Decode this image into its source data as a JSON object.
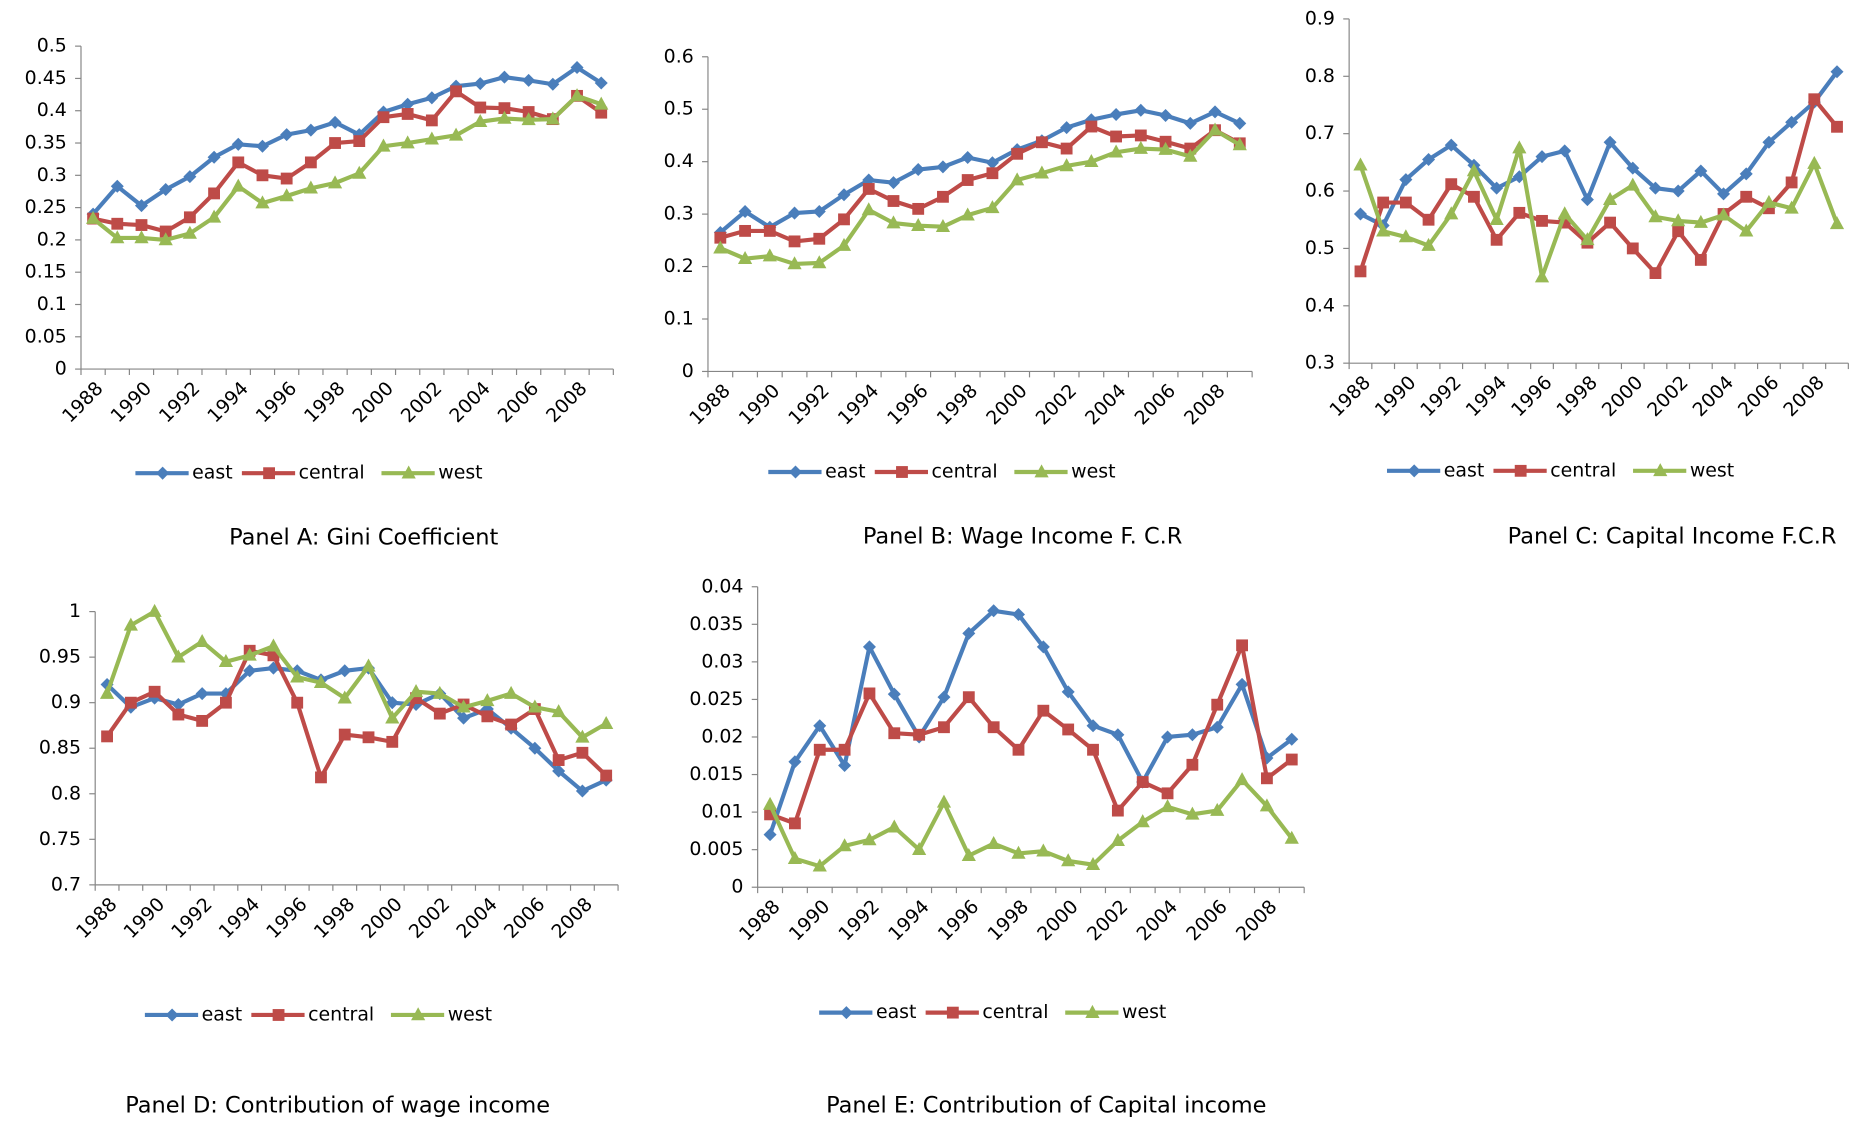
{
  "chart_data": [
    {
      "type": "line",
      "title": "Panel A: Gini Coefficient",
      "categories": [
        "1988",
        null,
        "1990",
        null,
        "1992",
        null,
        "1994",
        null,
        "1996",
        null,
        "1998",
        null,
        "2000",
        null,
        "2002",
        null,
        "2004",
        null,
        "2006",
        null,
        "2008",
        null
      ],
      "ylim": [
        0,
        0.5
      ],
      "yticks": [
        0,
        0.05,
        0.1,
        0.15,
        0.2,
        0.25,
        0.3,
        0.35,
        0.4,
        0.45,
        0.5
      ],
      "legend": "bottom",
      "series": [
        {
          "name": "east",
          "color": "#4a7ebb",
          "marker": "diamond",
          "values": [
            0.24,
            0.283,
            0.253,
            0.278,
            0.298,
            0.328,
            0.348,
            0.345,
            0.363,
            0.37,
            0.382,
            0.363,
            0.398,
            0.41,
            0.42,
            0.438,
            0.442,
            0.452,
            0.447,
            0.441,
            0.467,
            0.443
          ]
        },
        {
          "name": "central",
          "color": "#be4b48",
          "marker": "square",
          "values": [
            0.233,
            0.225,
            0.223,
            0.213,
            0.235,
            0.272,
            0.32,
            0.3,
            0.295,
            0.32,
            0.35,
            0.353,
            0.39,
            0.395,
            0.385,
            0.43,
            0.405,
            0.404,
            0.398,
            0.387,
            0.423,
            0.397
          ]
        },
        {
          "name": "west",
          "color": "#98b954",
          "marker": "triangle",
          "values": [
            0.233,
            0.203,
            0.203,
            0.2,
            0.21,
            0.235,
            0.283,
            0.257,
            0.268,
            0.28,
            0.288,
            0.303,
            0.345,
            0.35,
            0.356,
            0.362,
            0.383,
            0.388,
            0.386,
            0.387,
            0.423,
            0.41
          ]
        }
      ]
    },
    {
      "type": "line",
      "title": "Panel B: Wage Income F. C.R",
      "categories": [
        "1988",
        null,
        "1990",
        null,
        "1992",
        null,
        "1994",
        null,
        "1996",
        null,
        "1998",
        null,
        "2000",
        null,
        "2002",
        null,
        "2004",
        null,
        "2006",
        null,
        "2008",
        null
      ],
      "ylim": [
        0,
        0.6
      ],
      "yticks": [
        0,
        0.1,
        0.2,
        0.3,
        0.4,
        0.5,
        0.6
      ],
      "legend": "bottom",
      "series": [
        {
          "name": "east",
          "color": "#4a7ebb",
          "marker": "diamond",
          "values": [
            0.265,
            0.305,
            0.275,
            0.302,
            0.305,
            0.337,
            0.365,
            0.36,
            0.385,
            0.39,
            0.408,
            0.398,
            0.423,
            0.44,
            0.465,
            0.48,
            0.49,
            0.498,
            0.488,
            0.473,
            0.495,
            0.473
          ]
        },
        {
          "name": "central",
          "color": "#be4b48",
          "marker": "square",
          "values": [
            0.255,
            0.268,
            0.268,
            0.248,
            0.253,
            0.29,
            0.348,
            0.325,
            0.31,
            0.333,
            0.365,
            0.378,
            0.415,
            0.437,
            0.425,
            0.467,
            0.448,
            0.45,
            0.438,
            0.425,
            0.46,
            0.435
          ]
        },
        {
          "name": "west",
          "color": "#98b954",
          "marker": "triangle",
          "values": [
            0.235,
            0.215,
            0.22,
            0.205,
            0.207,
            0.24,
            0.308,
            0.283,
            0.278,
            0.276,
            0.298,
            0.312,
            0.365,
            0.378,
            0.392,
            0.4,
            0.418,
            0.425,
            0.423,
            0.41,
            0.46,
            0.432
          ]
        }
      ]
    },
    {
      "type": "line",
      "title": "Panel C: Capital Income F.C.R",
      "categories": [
        "1988",
        null,
        "1990",
        null,
        "1992",
        null,
        "1994",
        null,
        "1996",
        null,
        "1998",
        null,
        "2000",
        null,
        "2002",
        null,
        "2004",
        null,
        "2006",
        null,
        "2008",
        null
      ],
      "ylim": [
        0.3,
        0.9
      ],
      "yticks": [
        0.3,
        0.4,
        0.5,
        0.6,
        0.7,
        0.8,
        0.9
      ],
      "legend": "bottom",
      "series": [
        {
          "name": "east",
          "color": "#4a7ebb",
          "marker": "diamond",
          "values": [
            0.56,
            0.54,
            0.62,
            0.655,
            0.68,
            0.645,
            0.605,
            0.625,
            0.66,
            0.67,
            0.585,
            0.685,
            0.64,
            0.605,
            0.6,
            0.635,
            0.595,
            0.63,
            0.685,
            0.72,
            0.755,
            0.808
          ]
        },
        {
          "name": "central",
          "color": "#be4b48",
          "marker": "square",
          "values": [
            0.46,
            0.58,
            0.58,
            0.55,
            0.612,
            0.59,
            0.515,
            0.562,
            0.548,
            0.545,
            0.51,
            0.545,
            0.5,
            0.457,
            0.53,
            0.48,
            0.56,
            0.59,
            0.57,
            0.615,
            0.76,
            0.712
          ]
        },
        {
          "name": "west",
          "color": "#98b954",
          "marker": "triangle",
          "values": [
            0.645,
            0.53,
            0.52,
            0.505,
            0.56,
            0.635,
            0.55,
            0.675,
            0.45,
            0.56,
            0.515,
            0.585,
            0.61,
            0.555,
            0.548,
            0.545,
            0.558,
            0.53,
            0.58,
            0.57,
            0.648,
            0.543
          ]
        }
      ]
    },
    {
      "type": "line",
      "title": "Panel D: Contribution of wage income",
      "categories": [
        "1988",
        null,
        "1990",
        null,
        "1992",
        null,
        "1994",
        null,
        "1996",
        null,
        "1998",
        null,
        "2000",
        null,
        "2002",
        null,
        "2004",
        null,
        "2006",
        null,
        "2008",
        null
      ],
      "ylim": [
        0.7,
        1
      ],
      "yticks": [
        0.7,
        0.75,
        0.8,
        0.85,
        0.9,
        0.95,
        1
      ],
      "legend": "bottom",
      "series": [
        {
          "name": "east",
          "color": "#4a7ebb",
          "marker": "diamond",
          "values": [
            0.92,
            0.895,
            0.905,
            0.898,
            0.91,
            0.91,
            0.935,
            0.938,
            0.935,
            0.925,
            0.935,
            0.938,
            0.9,
            0.898,
            0.91,
            0.883,
            0.893,
            0.872,
            0.85,
            0.825,
            0.803,
            0.815
          ]
        },
        {
          "name": "central",
          "color": "#be4b48",
          "marker": "square",
          "values": [
            0.863,
            0.9,
            0.912,
            0.887,
            0.88,
            0.9,
            0.957,
            0.952,
            0.9,
            0.818,
            0.865,
            0.862,
            0.857,
            0.905,
            0.888,
            0.898,
            0.885,
            0.876,
            0.893,
            0.837,
            0.845,
            0.82
          ]
        },
        {
          "name": "west",
          "color": "#98b954",
          "marker": "triangle",
          "values": [
            0.91,
            0.985,
            1,
            0.95,
            0.967,
            0.945,
            0.952,
            0.962,
            0.928,
            0.922,
            0.905,
            0.94,
            0.883,
            0.912,
            0.91,
            0.895,
            0.902,
            0.91,
            0.895,
            0.89,
            0.862,
            0.877
          ]
        }
      ]
    },
    {
      "type": "line",
      "title": "Panel E: Contribution of Capital income",
      "categories": [
        "1988",
        null,
        "1990",
        null,
        "1992",
        null,
        "1994",
        null,
        "1996",
        null,
        "1998",
        null,
        "2000",
        null,
        "2002",
        null,
        "2004",
        null,
        "2006",
        null,
        "2008",
        null
      ],
      "ylim": [
        0,
        0.04
      ],
      "yticks": [
        0,
        0.005,
        0.01,
        0.015,
        0.02,
        0.025,
        0.03,
        0.035,
        0.04
      ],
      "legend": "bottom",
      "series": [
        {
          "name": "east",
          "color": "#4a7ebb",
          "marker": "diamond",
          "values": [
            0.007,
            0.0167,
            0.0215,
            0.0162,
            0.032,
            0.0257,
            0.02,
            0.0253,
            0.0338,
            0.0368,
            0.0363,
            0.032,
            0.026,
            0.0215,
            0.0203,
            0.014,
            0.02,
            0.0203,
            0.0213,
            0.027,
            0.0172,
            0.0197
          ]
        },
        {
          "name": "central",
          "color": "#be4b48",
          "marker": "square",
          "values": [
            0.0097,
            0.0085,
            0.0183,
            0.0183,
            0.0258,
            0.0205,
            0.0203,
            0.0213,
            0.0253,
            0.0213,
            0.0183,
            0.0235,
            0.021,
            0.0183,
            0.0102,
            0.014,
            0.0125,
            0.0163,
            0.0243,
            0.0322,
            0.0145,
            0.017
          ]
        },
        {
          "name": "west",
          "color": "#98b954",
          "marker": "triangle",
          "values": [
            0.011,
            0.0038,
            0.0028,
            0.0055,
            0.0063,
            0.008,
            0.005,
            0.0113,
            0.0042,
            0.0058,
            0.0045,
            0.0048,
            0.0035,
            0.003,
            0.0062,
            0.0087,
            0.0107,
            0.0097,
            0.0102,
            0.0143,
            0.0108,
            0.0065
          ]
        }
      ]
    }
  ]
}
